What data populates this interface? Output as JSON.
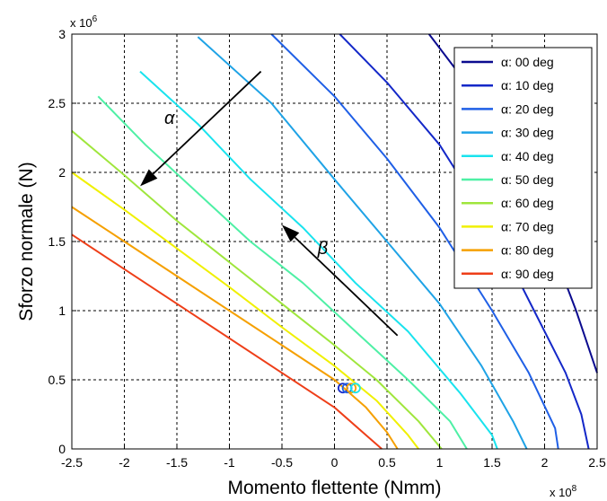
{
  "chart_data": {
    "type": "line",
    "xlabel": "Momento flettente (Nmm)",
    "ylabel": "Sforzo normale (N)",
    "x_exponent_label": "x 10",
    "x_exponent_power": "8",
    "y_exponent_label": "x 10",
    "y_exponent_power": "6",
    "xlim": [
      -2.5,
      2.5
    ],
    "ylim": [
      0,
      3
    ],
    "xticks": [
      -2.5,
      -2,
      -1.5,
      -1,
      -0.5,
      0,
      0.5,
      1,
      1.5,
      2,
      2.5
    ],
    "xtick_labels": [
      "-2.5",
      "-2",
      "-1.5",
      "-1",
      "-0.5",
      "0",
      "0.5",
      "1",
      "1.5",
      "2",
      "2.5"
    ],
    "yticks": [
      0,
      0.5,
      1,
      1.5,
      2,
      2.5,
      3
    ],
    "ytick_labels": [
      "0",
      "0.5",
      "1",
      "1.5",
      "2",
      "2.5",
      "3"
    ],
    "grid": true,
    "grid_style": "dashed",
    "legend_position": "top-right",
    "series": [
      {
        "name": "α: 00 deg",
        "color": "#0b0b8f",
        "x": [
          0.9,
          1.4,
          1.9,
          2.3,
          2.5
        ],
        "y": [
          3.0,
          2.5,
          1.8,
          1.0,
          0.55
        ]
      },
      {
        "name": "α: 10 deg",
        "color": "#1428c8",
        "x": [
          0.05,
          0.5,
          1.0,
          1.5,
          1.9,
          2.2,
          2.35,
          2.42
        ],
        "y": [
          3.0,
          2.65,
          2.2,
          1.6,
          1.0,
          0.55,
          0.25,
          0.0
        ]
      },
      {
        "name": "α: 20 deg",
        "color": "#1f5fe6",
        "x": [
          -0.6,
          0.0,
          0.5,
          1.0,
          1.5,
          1.85,
          2.1,
          2.13
        ],
        "y": [
          3.0,
          2.55,
          2.1,
          1.6,
          1.0,
          0.55,
          0.15,
          0.0
        ]
      },
      {
        "name": "α: 30 deg",
        "color": "#1fa3e6",
        "x": [
          -1.3,
          -0.6,
          0.0,
          0.5,
          1.0,
          1.4,
          1.7,
          1.83
        ],
        "y": [
          2.98,
          2.5,
          1.95,
          1.5,
          1.05,
          0.6,
          0.2,
          0.0
        ]
      },
      {
        "name": "α: 40 deg",
        "color": "#19e3ee",
        "x": [
          -1.85,
          -1.3,
          -0.8,
          -0.3,
          0.2,
          0.7,
          1.2,
          1.5,
          1.55
        ],
        "y": [
          2.73,
          2.35,
          1.95,
          1.6,
          1.2,
          0.85,
          0.4,
          0.1,
          0.0
        ]
      },
      {
        "name": "α: 50 deg",
        "color": "#4ef0a5",
        "x": [
          -2.25,
          -1.8,
          -1.3,
          -0.8,
          -0.3,
          0.2,
          0.7,
          1.1,
          1.26
        ],
        "y": [
          2.55,
          2.2,
          1.85,
          1.5,
          1.2,
          0.85,
          0.5,
          0.2,
          0.0
        ]
      },
      {
        "name": "α: 60 deg",
        "color": "#9fe63c",
        "x": [
          -2.5,
          -2.0,
          -1.5,
          -1.0,
          -0.5,
          0.0,
          0.4,
          0.8,
          1.02
        ],
        "y": [
          2.3,
          1.98,
          1.65,
          1.35,
          1.05,
          0.75,
          0.5,
          0.2,
          0.0
        ]
      },
      {
        "name": "α: 70 deg",
        "color": "#f0f000",
        "x": [
          -2.5,
          -2.0,
          -1.5,
          -1.0,
          -0.5,
          0.0,
          0.4,
          0.7,
          0.8
        ],
        "y": [
          2.0,
          1.73,
          1.45,
          1.17,
          0.88,
          0.6,
          0.35,
          0.1,
          0.0
        ]
      },
      {
        "name": "α: 80 deg",
        "color": "#f5a000",
        "x": [
          -2.5,
          -2.0,
          -1.5,
          -1.0,
          -0.5,
          0.0,
          0.3,
          0.5,
          0.6
        ],
        "y": [
          1.75,
          1.5,
          1.25,
          1.0,
          0.75,
          0.5,
          0.3,
          0.12,
          0.0
        ]
      },
      {
        "name": "α: 90 deg",
        "color": "#ee3e18",
        "x": [
          -2.5,
          -2.0,
          -1.5,
          -1.0,
          -0.5,
          0.0,
          0.3,
          0.45
        ],
        "y": [
          1.55,
          1.3,
          1.05,
          0.8,
          0.55,
          0.3,
          0.1,
          0.0
        ]
      }
    ],
    "markers": [
      {
        "x": 0.08,
        "y": 0.44,
        "color": "#1428c8"
      },
      {
        "x": 0.12,
        "y": 0.44,
        "color": "#1f5fe6"
      },
      {
        "x": 0.16,
        "y": 0.44,
        "color": "#f5a000"
      },
      {
        "x": 0.2,
        "y": 0.44,
        "color": "#19e3ee"
      }
    ],
    "annotations": [
      {
        "label": "α",
        "text_x": -1.62,
        "text_y": 2.35,
        "arrow_from": [
          -0.7,
          2.73
        ],
        "arrow_to": [
          -1.85,
          1.9
        ]
      },
      {
        "label": "β",
        "text_x": -0.16,
        "text_y": 1.41,
        "arrow_from": [
          0.6,
          0.82
        ],
        "arrow_to": [
          -0.5,
          1.62
        ]
      }
    ]
  }
}
